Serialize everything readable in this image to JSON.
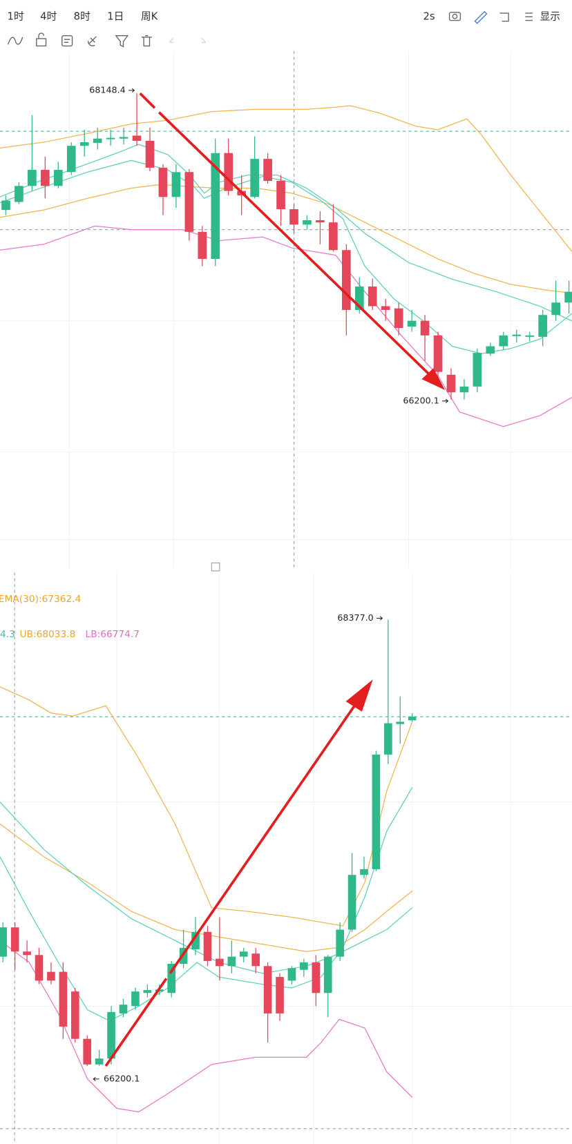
{
  "toolbar": {
    "intervals": [
      "1时",
      "4时",
      "8时",
      "1日",
      "周K"
    ],
    "refresh": "2s",
    "display": "显示"
  },
  "chart_data": [
    {
      "type": "candlestick",
      "ylim": [
        65124,
        68417
      ],
      "annotations": [
        68148.4,
        66200.1
      ],
      "candles": [
        [
          67406,
          67499,
          67373,
          67466
        ],
        [
          67457,
          67582,
          67443,
          67559
        ],
        [
          67559,
          68009,
          67527,
          67661
        ],
        [
          67661,
          67745,
          67480,
          67559
        ],
        [
          67559,
          67712,
          67545,
          67661
        ],
        [
          67647,
          67837,
          67628,
          67814
        ],
        [
          67814,
          67916,
          67745,
          67837
        ],
        [
          67833,
          67930,
          67791,
          67860
        ],
        [
          67856,
          67916,
          67814,
          67865
        ],
        [
          67860,
          67930,
          67823,
          67870
        ],
        [
          67879,
          68148,
          67814,
          67846
        ],
        [
          67846,
          67930,
          67652,
          67675
        ],
        [
          67675,
          67698,
          67373,
          67489
        ],
        [
          67489,
          67698,
          67420,
          67647
        ],
        [
          67647,
          67666,
          67211,
          67267
        ],
        [
          67267,
          67304,
          67049,
          67095
        ],
        [
          67095,
          67860,
          67049,
          67768
        ],
        [
          67768,
          67860,
          67499,
          67527
        ],
        [
          67527,
          67628,
          67373,
          67499
        ],
        [
          67489,
          67874,
          67480,
          67731
        ],
        [
          67731,
          67768,
          67573,
          67591
        ],
        [
          67591,
          67628,
          67304,
          67411
        ],
        [
          67411,
          67443,
          67258,
          67313
        ],
        [
          67313,
          67373,
          67281,
          67341
        ],
        [
          67341,
          67397,
          67188,
          67327
        ],
        [
          67327,
          67443,
          67142,
          67151
        ],
        [
          67151,
          67188,
          66608,
          66770
        ],
        [
          66770,
          66979,
          66747,
          66919
        ],
        [
          66919,
          66970,
          66770,
          66794
        ],
        [
          66794,
          66840,
          66701,
          66770
        ],
        [
          66780,
          66817,
          66608,
          66655
        ],
        [
          66664,
          66770,
          66631,
          66701
        ],
        [
          66701,
          66738,
          66446,
          66608
        ],
        [
          66608,
          66631,
          66330,
          66376
        ],
        [
          66358,
          66399,
          66200,
          66246
        ],
        [
          66246,
          66330,
          66200,
          66283
        ],
        [
          66283,
          66525,
          66246,
          66497
        ],
        [
          66492,
          66562,
          66478,
          66539
        ],
        [
          66539,
          66631,
          66515,
          66608
        ],
        [
          66604,
          66645,
          66562,
          66613
        ],
        [
          66599,
          66631,
          66571,
          66608
        ],
        [
          66599,
          66770,
          66539,
          66738
        ],
        [
          66738,
          66956,
          66701,
          66817
        ],
        [
          66817,
          66956,
          66747,
          66886
        ]
      ]
    },
    {
      "type": "candlestick",
      "ylim": [
        65819,
        68608
      ],
      "legend": [
        "EMA(30):67362.4",
        "4.3",
        "UB:68033.8",
        "LB:66774.7"
      ],
      "annotations": [
        {
          "value": 68377.0,
          "label": "68377.0"
        },
        66200.1
      ],
      "candles": [
        [
          66733,
          66901,
          66705,
          66876
        ],
        [
          66876,
          66901,
          66669,
          66758
        ],
        [
          66758,
          66812,
          66705,
          66741
        ],
        [
          66741,
          66776,
          66598,
          66616
        ],
        [
          66659,
          66705,
          66598,
          66616
        ],
        [
          66659,
          66705,
          66332,
          66392
        ],
        [
          66563,
          66581,
          66314,
          66332
        ],
        [
          66332,
          66349,
          66200,
          66207
        ],
        [
          66207,
          66278,
          66200,
          66236
        ],
        [
          66236,
          66492,
          66207,
          66463
        ],
        [
          66456,
          66527,
          66438,
          66499
        ],
        [
          66492,
          66581,
          66474,
          66563
        ],
        [
          66556,
          66598,
          66534,
          66570
        ],
        [
          66563,
          66598,
          66545,
          66573
        ],
        [
          66556,
          66712,
          66534,
          66698
        ],
        [
          66698,
          66865,
          66677,
          66776
        ],
        [
          66769,
          66926,
          66741,
          66854
        ],
        [
          66854,
          66883,
          66687,
          66712
        ],
        [
          66723,
          66926,
          66616,
          66687
        ],
        [
          66687,
          66812,
          66652,
          66733
        ],
        [
          66733,
          66776,
          66705,
          66758
        ],
        [
          66748,
          66776,
          66652,
          66687
        ],
        [
          66687,
          66705,
          66314,
          66456
        ],
        [
          66634,
          66652,
          66420,
          66456
        ],
        [
          66616,
          66687,
          66598,
          66677
        ],
        [
          66669,
          66723,
          66634,
          66705
        ],
        [
          66705,
          66741,
          66492,
          66556
        ],
        [
          66556,
          66741,
          66438,
          66733
        ],
        [
          66733,
          66901,
          66712,
          66865
        ],
        [
          66865,
          67239,
          66854,
          67132
        ],
        [
          67132,
          67221,
          67114,
          67160
        ],
        [
          67160,
          67737,
          67150,
          67719
        ],
        [
          67719,
          68377,
          67673,
          67872
        ],
        [
          67868,
          68003,
          67772,
          67879
        ],
        [
          67886,
          67921,
          67879,
          67904
        ]
      ]
    }
  ]
}
